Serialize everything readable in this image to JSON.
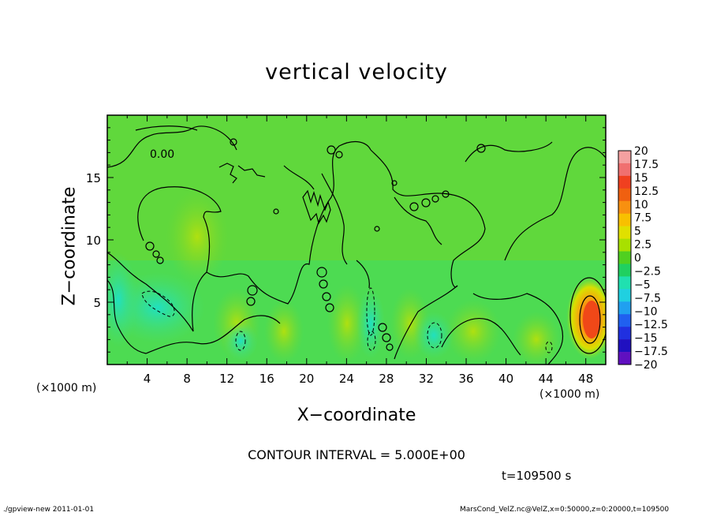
{
  "chart_data": {
    "type": "heatmap",
    "title": "vertical velocity",
    "xlabel": "X−coordinate",
    "ylabel": "Z−coordinate",
    "x_unit_left": "(×1000 m)",
    "x_unit_right": "(×1000 m)",
    "xlim": [
      0,
      50
    ],
    "ylim": [
      0,
      20
    ],
    "x_ticks": [
      4,
      8,
      12,
      16,
      20,
      24,
      28,
      32,
      36,
      40,
      44,
      48
    ],
    "y_ticks": [
      5,
      10,
      15
    ],
    "contour_label": "0.00",
    "contour_interval": "CONTOUR INTERVAL = 5.000E+00",
    "time": "t=109500 s",
    "colorbar": {
      "levels": [
        "20",
        "17.5",
        "15",
        "12.5",
        "10",
        "7.5",
        "5",
        "2.5",
        "0",
        "−2.5",
        "−5",
        "−7.5",
        "−10",
        "−12.5",
        "−15",
        "−17.5",
        "−20"
      ],
      "colors": [
        "#f4a0a0",
        "#f07070",
        "#f04020",
        "#f06010",
        "#f89010",
        "#f8c000",
        "#e0e000",
        "#a8e000",
        "#50d020",
        "#20d060",
        "#20e0b0",
        "#20d0e0",
        "#20a0f0",
        "#2060f0",
        "#2030e0",
        "#2010c0",
        "#6010c0"
      ]
    },
    "features": [
      {
        "x": 48,
        "z": 3.5,
        "peak_w": 15,
        "desc": "strong updraft"
      },
      {
        "x": 5.5,
        "z": 5,
        "peak_w": -5,
        "desc": "downdraft"
      },
      {
        "x": 13.5,
        "z": 2,
        "peak_w": -5,
        "desc": "downdraft"
      },
      {
        "x": 26.5,
        "z": 3,
        "peak_w": -5,
        "desc": "downdraft"
      },
      {
        "x": 32.5,
        "z": 2.5,
        "peak_w": -5,
        "desc": "downdraft"
      }
    ]
  },
  "footer": {
    "left": "./gpview-new  2011-01-01",
    "right": "MarsCond_VelZ.nc@VelZ,x=0:50000,z=0:20000,t=109500"
  }
}
